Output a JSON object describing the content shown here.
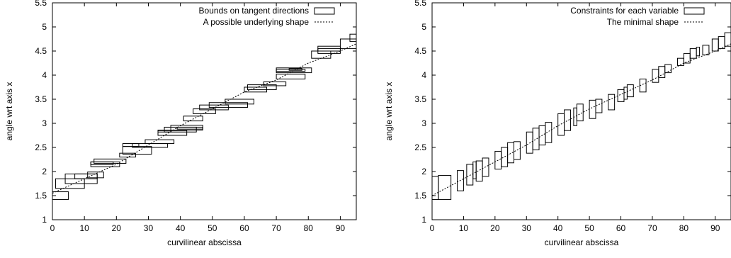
{
  "chart_data": [
    {
      "type": "step-bounds",
      "xlabel": "curvilinear abscissa",
      "ylabel": "angle wrt axis x",
      "xlim": [
        0,
        95
      ],
      "ylim": [
        1,
        5.5
      ],
      "xticks": [
        0,
        10,
        20,
        30,
        40,
        50,
        60,
        70,
        80,
        90
      ],
      "yticks": [
        1,
        1.5,
        2,
        2.5,
        3,
        3.5,
        4,
        4.5,
        5,
        5.5
      ],
      "tick_labels_x": [
        "0",
        "10",
        "20",
        "30",
        "40",
        "50",
        "60",
        "70",
        "80",
        "90"
      ],
      "tick_labels_y": [
        "1",
        "1.5",
        "2",
        "2.5",
        "3",
        "3.5",
        "4",
        "4.5",
        "5",
        "5.5"
      ],
      "legend_position": "top-right",
      "series": [
        {
          "name": "Bounds on tangent directions",
          "style": "box",
          "boxes": [
            [
              0,
              5,
              1.42,
              1.58
            ],
            [
              1,
              10,
              1.65,
              1.85
            ],
            [
              4,
              14,
              1.75,
              1.95
            ],
            [
              7,
              14,
              1.85,
              1.95
            ],
            [
              11,
              16,
              1.87,
              1.99
            ],
            [
              12,
              21,
              2.1,
              2.2
            ],
            [
              12,
              19,
              2.14,
              2.2
            ],
            [
              13,
              23,
              2.17,
              2.26
            ],
            [
              21,
              26,
              2.3,
              2.38
            ],
            [
              22,
              31,
              2.36,
              2.52
            ],
            [
              22,
              27,
              2.52,
              2.58
            ],
            [
              25,
              36,
              2.5,
              2.58
            ],
            [
              29,
              38,
              2.58,
              2.66
            ],
            [
              33,
              42,
              2.75,
              2.85
            ],
            [
              33,
              37,
              2.82,
              2.86
            ],
            [
              35,
              45,
              2.82,
              2.92
            ],
            [
              37,
              47,
              2.86,
              2.96
            ],
            [
              39,
              47,
              2.88,
              2.92
            ],
            [
              41,
              47,
              3.05,
              3.15
            ],
            [
              44,
              51,
              3.2,
              3.3
            ],
            [
              46,
              55,
              3.28,
              3.38
            ],
            [
              49,
              61,
              3.33,
              3.43
            ],
            [
              54,
              63,
              3.4,
              3.5
            ],
            [
              60,
              67,
              3.65,
              3.75
            ],
            [
              61,
              70,
              3.7,
              3.8
            ],
            [
              66,
              73,
              3.78,
              3.86
            ],
            [
              70,
              79,
              3.92,
              4.02
            ],
            [
              70,
              81,
              4.05,
              4.15
            ],
            [
              70,
              79,
              4.08,
              4.12
            ],
            [
              74,
              78,
              4.1,
              4.14
            ],
            [
              81,
              87,
              4.35,
              4.5
            ],
            [
              83,
              90,
              4.45,
              4.55
            ],
            [
              83,
              90,
              4.5,
              4.6
            ],
            [
              90,
              95,
              4.55,
              4.75
            ],
            [
              93,
              95,
              4.7,
              4.85
            ]
          ]
        },
        {
          "name": "A possible underlying shape",
          "style": "dotted-line",
          "x": [
            0,
            10,
            20,
            30,
            40,
            50,
            60,
            70,
            80,
            90,
            95
          ],
          "y": [
            1.55,
            1.85,
            2.15,
            2.55,
            2.95,
            3.3,
            3.65,
            3.9,
            4.25,
            4.5,
            4.65
          ]
        }
      ]
    },
    {
      "type": "step-bounds",
      "xlabel": "curvilinear abscissa",
      "ylabel": "angle wrt axis x",
      "xlim": [
        0,
        95
      ],
      "ylim": [
        1,
        5.5
      ],
      "xticks": [
        0,
        10,
        20,
        30,
        40,
        50,
        60,
        70,
        80,
        90
      ],
      "yticks": [
        1,
        1.5,
        2,
        2.5,
        3,
        3.5,
        4,
        4.5,
        5,
        5.5
      ],
      "tick_labels_x": [
        "0",
        "10",
        "20",
        "30",
        "40",
        "50",
        "60",
        "70",
        "80",
        "90"
      ],
      "tick_labels_y": [
        "1",
        "1.5",
        "2",
        "2.5",
        "3",
        "3.5",
        "4",
        "4.5",
        "5",
        "5.5"
      ],
      "legend_position": "top-right",
      "series": [
        {
          "name": "Constraints for each variable",
          "style": "box",
          "boxes": [
            [
              0,
              2,
              1.42,
              1.9
            ],
            [
              2,
              6,
              1.42,
              1.92
            ],
            [
              8,
              10,
              1.6,
              2.02
            ],
            [
              11,
              13,
              1.72,
              2.15
            ],
            [
              13,
              14,
              1.85,
              2.2
            ],
            [
              14,
              16,
              1.8,
              2.22
            ],
            [
              16,
              18,
              1.9,
              2.28
            ],
            [
              20,
              22,
              2.05,
              2.42
            ],
            [
              22,
              24,
              2.1,
              2.5
            ],
            [
              24,
              26,
              2.18,
              2.6
            ],
            [
              26,
              28,
              2.25,
              2.62
            ],
            [
              30,
              32,
              2.38,
              2.82
            ],
            [
              32,
              34,
              2.45,
              2.9
            ],
            [
              34,
              36,
              2.55,
              2.95
            ],
            [
              36,
              38,
              2.6,
              3.02
            ],
            [
              40,
              42,
              2.75,
              3.2
            ],
            [
              42,
              44,
              2.85,
              3.28
            ],
            [
              45,
              46,
              2.95,
              3.32
            ],
            [
              46,
              48,
              3.05,
              3.4
            ],
            [
              50,
              52,
              3.1,
              3.48
            ],
            [
              52,
              54,
              3.22,
              3.5
            ],
            [
              56,
              58,
              3.28,
              3.6
            ],
            [
              59,
              61,
              3.45,
              3.7
            ],
            [
              61,
              62,
              3.5,
              3.75
            ],
            [
              62,
              64,
              3.55,
              3.8
            ],
            [
              66,
              68,
              3.65,
              3.92
            ],
            [
              70,
              72,
              3.85,
              4.12
            ],
            [
              72,
              74,
              3.95,
              4.18
            ],
            [
              74,
              76,
              4.05,
              4.22
            ],
            [
              78,
              80,
              4.2,
              4.35
            ],
            [
              80,
              82,
              4.25,
              4.45
            ],
            [
              82,
              84,
              4.35,
              4.55
            ],
            [
              84,
              85,
              4.4,
              4.58
            ],
            [
              86,
              88,
              4.42,
              4.62
            ],
            [
              89,
              91,
              4.5,
              4.75
            ],
            [
              91,
              93,
              4.55,
              4.8
            ],
            [
              93,
              95,
              4.6,
              4.88
            ]
          ]
        },
        {
          "name": "The minimal shape",
          "style": "dotted-line",
          "x": [
            0,
            10,
            20,
            30,
            40,
            50,
            60,
            70,
            80,
            90,
            95
          ],
          "y": [
            1.5,
            1.85,
            2.2,
            2.55,
            2.95,
            3.3,
            3.6,
            3.9,
            4.25,
            4.5,
            4.65
          ]
        }
      ]
    }
  ]
}
